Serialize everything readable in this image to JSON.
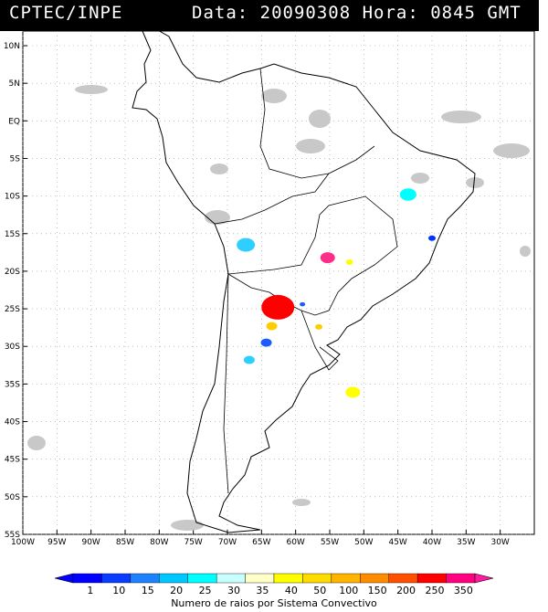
{
  "header": {
    "agency": "CPTEC/INPE",
    "date_text": "Data: 20090308  Hora: 0845 GMT"
  },
  "map": {
    "lat_labels": [
      "10N",
      "5N",
      "EQ",
      "5S",
      "10S",
      "15S",
      "20S",
      "25S",
      "30S",
      "35S",
      "40S",
      "45S",
      "50S",
      "55S"
    ],
    "lon_labels": [
      "100W",
      "95W",
      "90W",
      "85W",
      "80W",
      "75W",
      "70W",
      "65W",
      "60W",
      "55W",
      "50W",
      "45W",
      "40W",
      "35W",
      "30W"
    ],
    "flash_clusters": [
      {
        "lon": -43.5,
        "lat": -9.8,
        "color": "#00ffff",
        "size": 9
      },
      {
        "lon": -67.3,
        "lat": -16.5,
        "color": "#2ecfff",
        "size": 10
      },
      {
        "lon": -55.3,
        "lat": -18.2,
        "color": "#ff2d8a",
        "size": 8
      },
      {
        "lon": -52.1,
        "lat": -18.8,
        "color": "#ffff00",
        "size": 4
      },
      {
        "lon": -40.0,
        "lat": -15.6,
        "color": "#0033ff",
        "size": 4
      },
      {
        "lon": -62.6,
        "lat": -24.8,
        "color": "#ff0000",
        "size": 18
      },
      {
        "lon": -63.5,
        "lat": -27.3,
        "color": "#ffcc00",
        "size": 6
      },
      {
        "lon": -56.6,
        "lat": -27.4,
        "color": "#ffcc00",
        "size": 4
      },
      {
        "lon": -64.3,
        "lat": -29.5,
        "color": "#1a5cff",
        "size": 6
      },
      {
        "lon": -66.8,
        "lat": -31.8,
        "color": "#2ecfff",
        "size": 6
      },
      {
        "lon": -51.6,
        "lat": -36.1,
        "color": "#ffff00",
        "size": 8
      },
      {
        "lon": -59.0,
        "lat": -24.4,
        "color": "#1a5cff",
        "size": 3
      }
    ]
  },
  "legend": {
    "labels": [
      "1",
      "10",
      "15",
      "20",
      "25",
      "30",
      "35",
      "40",
      "50",
      "100",
      "150",
      "200",
      "250",
      "350"
    ],
    "colors": [
      "#0000ff",
      "#0a3cff",
      "#1e82ff",
      "#00c8ff",
      "#00ffff",
      "#c8ffff",
      "#ffffc8",
      "#ffff00",
      "#ffdc00",
      "#ffb400",
      "#ff8c00",
      "#ff5000",
      "#ff0000",
      "#ff0080"
    ],
    "caption": "Numero de raios por Sistema Convectivo"
  }
}
